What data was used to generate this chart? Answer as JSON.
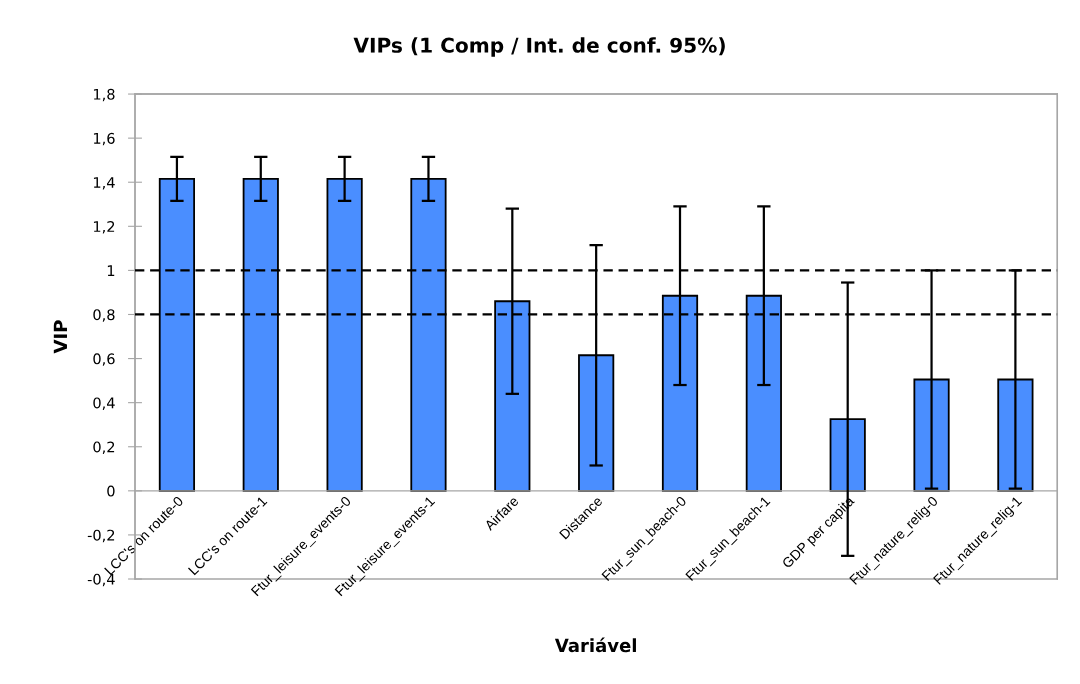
{
  "chart_data": {
    "type": "bar",
    "title": "VIPs (1 Comp / Int. de conf. 95%)",
    "xlabel": "Variável",
    "ylabel": "VIP",
    "categories": [
      "LCC's on route-0",
      "LCC's on route-1",
      "Ftur_leisure_events-0",
      "Ftur_leisure_events-1",
      "Airfare",
      "Distance",
      "Ftur_sun_beach-0",
      "Ftur_sun_beach-1",
      "GDP per capita",
      "Ftur_nature_relig-0",
      "Ftur_nature_relig-1"
    ],
    "values": [
      1.415,
      1.415,
      1.415,
      1.415,
      0.86,
      0.615,
      0.885,
      0.885,
      0.325,
      0.505,
      0.505
    ],
    "errors": [
      0.1,
      0.1,
      0.1,
      0.1,
      0.42,
      0.5,
      0.405,
      0.405,
      0.62,
      0.495,
      0.495
    ],
    "color": "#4a8eff",
    "ylim": [
      -0.4,
      1.8
    ],
    "yticks": [
      {
        "value": -0.4,
        "label": "-0,4"
      },
      {
        "value": -0.2,
        "label": "-0,2"
      },
      0,
      {
        "value": 0.2,
        "label": "0,2"
      },
      {
        "value": 0.4,
        "label": "0,4"
      },
      {
        "value": 0.6,
        "label": "0,6"
      },
      {
        "value": 0.8,
        "label": "0,8"
      },
      1,
      {
        "value": 1.2,
        "label": "1,2"
      },
      {
        "value": 1.4,
        "label": "1,4"
      },
      {
        "value": 1.6,
        "label": "1,6"
      },
      {
        "value": 1.8,
        "label": "1,8"
      }
    ],
    "ref_lines": [
      {
        "axis": "y",
        "value": 1,
        "color": "#000000",
        "line_style": "dashed"
      },
      {
        "axis": "y",
        "value": 0.8,
        "color": "#000000",
        "line_style": "dashed"
      }
    ]
  }
}
